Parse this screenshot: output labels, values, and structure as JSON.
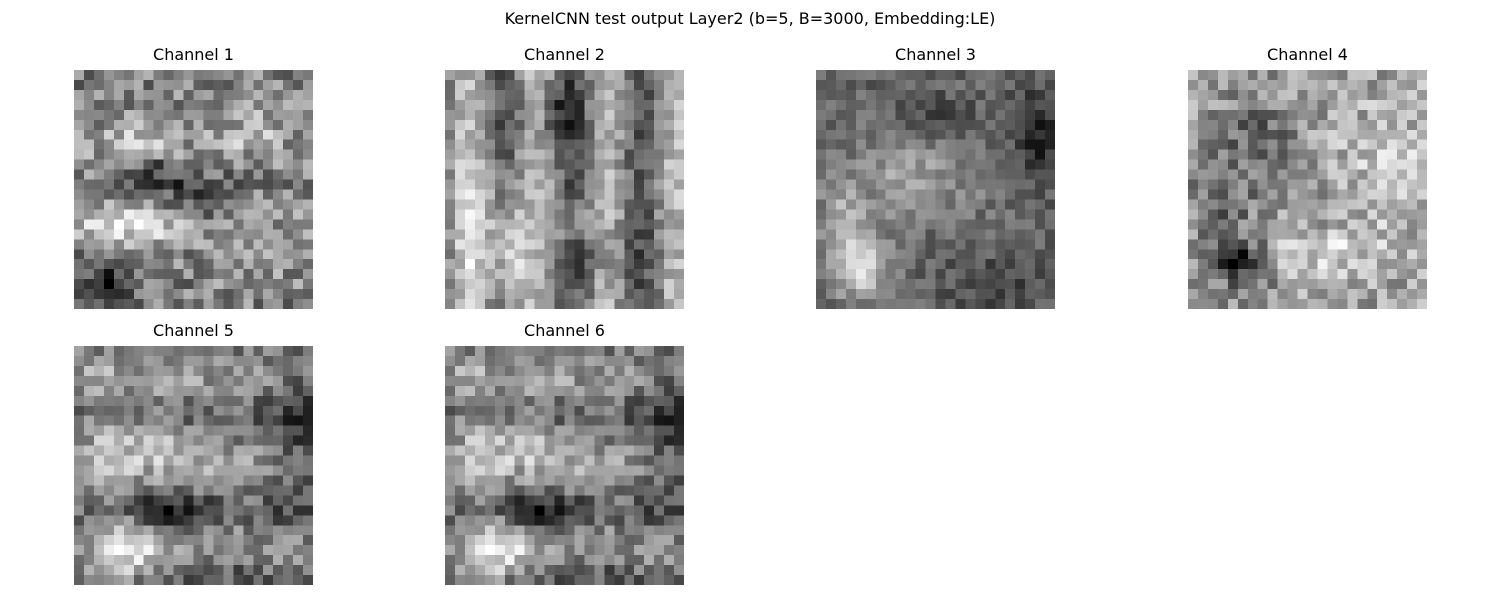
{
  "figure": {
    "title": "KernelCNN test output Layer2 (b=5, B=3000, Embedding:LE)"
  },
  "chart_data": [
    {
      "type": "heatmap",
      "title": "Channel 1",
      "colormap": "gray",
      "axes": "off",
      "rows": 24,
      "cols": 24
    },
    {
      "type": "heatmap",
      "title": "Channel 2",
      "colormap": "gray",
      "axes": "off",
      "rows": 24,
      "cols": 24
    },
    {
      "type": "heatmap",
      "title": "Channel 3",
      "colormap": "gray",
      "axes": "off",
      "rows": 24,
      "cols": 24
    },
    {
      "type": "heatmap",
      "title": "Channel 4",
      "colormap": "gray",
      "axes": "off",
      "rows": 24,
      "cols": 24
    },
    {
      "type": "heatmap",
      "title": "Channel 5",
      "colormap": "gray",
      "axes": "off",
      "rows": 24,
      "cols": 24
    },
    {
      "type": "heatmap",
      "title": "Channel 6",
      "colormap": "gray",
      "axes": "off",
      "rows": 24,
      "cols": 24
    }
  ]
}
